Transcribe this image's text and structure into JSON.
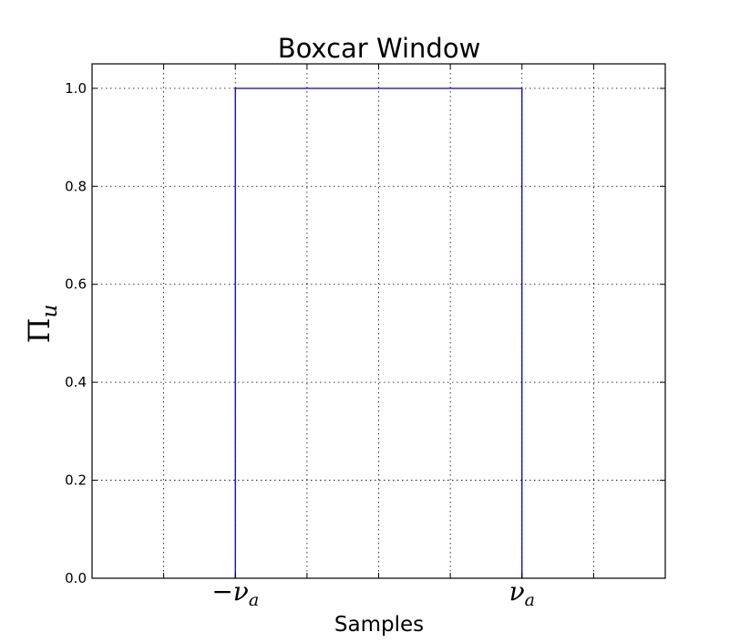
{
  "chart_data": {
    "type": "line",
    "title": "Boxcar Window",
    "xlabel": "Samples",
    "ylabel": {
      "symbol": "Π",
      "subscript": "u"
    },
    "xlim": [
      -1,
      3
    ],
    "ylim": [
      0.0,
      1.05
    ],
    "yticks": [
      {
        "value": 0.0,
        "label": "0.0"
      },
      {
        "value": 0.2,
        "label": "0.2"
      },
      {
        "value": 0.4,
        "label": "0.4"
      },
      {
        "value": 0.6,
        "label": "0.6"
      },
      {
        "value": 0.8,
        "label": "0.8"
      },
      {
        "value": 1.0,
        "label": "1.0"
      }
    ],
    "xgrid": [
      -0.5,
      0,
      0.5,
      1,
      1.5,
      2,
      2.5
    ],
    "xticks": [
      {
        "value": 0,
        "label": "−ν",
        "subscript": "a"
      },
      {
        "value": 2,
        "label": "ν",
        "subscript": "a"
      }
    ],
    "grid": true,
    "series": [
      {
        "color": "#0000cc",
        "x": [
          0,
          0,
          2,
          2
        ],
        "y": [
          0.0,
          1.0,
          1.0,
          0.0
        ]
      }
    ]
  }
}
